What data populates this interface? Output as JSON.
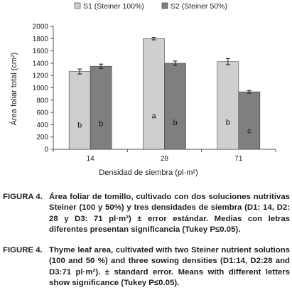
{
  "chart_data": {
    "type": "bar",
    "categories": [
      "14",
      "28",
      "71"
    ],
    "series": [
      {
        "name": "S1 (Steiner 100%)",
        "color": "#cfcfcf",
        "values": [
          1265,
          1800,
          1425
        ],
        "errors": [
          40,
          20,
          50
        ],
        "letters": [
          "b",
          "a",
          "b"
        ]
      },
      {
        "name": "S2 (Steiner 50%)",
        "color": "#7f7f7f",
        "values": [
          1350,
          1400,
          935
        ],
        "errors": [
          35,
          35,
          22
        ],
        "letters": [
          "b",
          "b",
          "c"
        ]
      }
    ],
    "xlabel": "Densidad de siembra (pl·m²)",
    "ylabel": "Área foliar total (cm²)",
    "ylim": [
      0,
      2000
    ],
    "yticks": [
      "0",
      "200",
      "400",
      "600",
      "800",
      "1000",
      "1200",
      "1400",
      "1600",
      "1800",
      "2000"
    ],
    "legend_position": "top",
    "grid": false
  },
  "captions": {
    "es": {
      "label": "FIGURA 4.",
      "text": "Área foliar de tomillo, cultivado con dos soluciones nutritivas Steiner (100 y 50%) y tres densidades de siembra (D1: 14, D2: 28 y D3: 71 pl·m²) ± error estándar. Medias con letras diferentes presentan significancia (Tukey P≤0.05)."
    },
    "en": {
      "label": "FIGURE 4.",
      "text": "Thyme leaf area, cultivated with two Steiner nutrient solutions (100 and 50 %) and three sowing densities (D1:14, D2:28 and D3:71 pl·m²). ± standard error. Means with different letters show significance (Tukey P≤0.05)."
    }
  }
}
